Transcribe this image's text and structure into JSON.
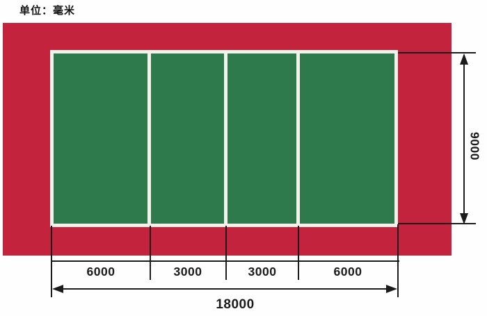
{
  "unit_label": "单位：毫米",
  "dimensions": {
    "segments": [
      "6000",
      "3000",
      "3000",
      "6000"
    ],
    "total_width": "18000",
    "height": "9000"
  },
  "colors": {
    "apron_red": "#C3233C",
    "court_green": "#2F7A4D",
    "court_line_white": "#F2F1EA",
    "dimension_line": "#1B1B1B"
  }
}
